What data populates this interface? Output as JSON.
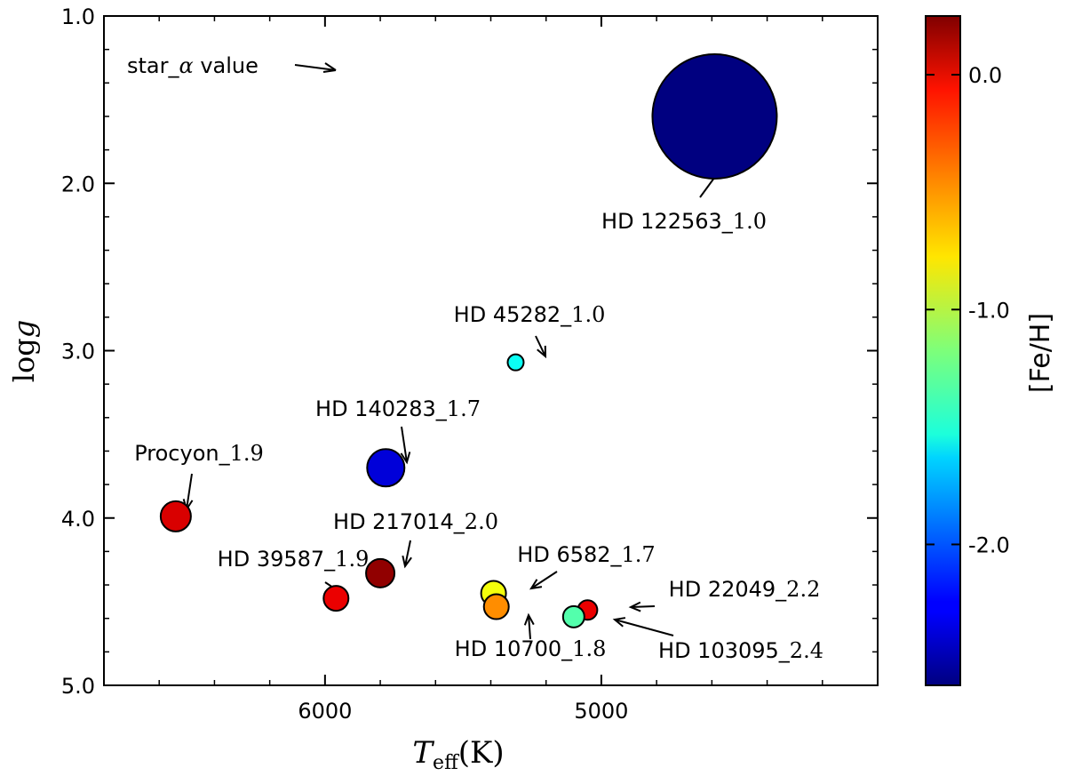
{
  "chart_data": {
    "type": "scatter",
    "title": "",
    "xlabel": {
      "symbol": "T",
      "subscript": "eff",
      "unit": "(K)"
    },
    "ylabel": {
      "text": "log",
      "var": "g"
    },
    "xlim": [
      6800,
      4000
    ],
    "ylim": [
      1.0,
      5.0
    ],
    "y_inverted": true,
    "x_inverted": true,
    "x_ticks": [
      6000,
      5000
    ],
    "x_tick_labels": [
      "6000",
      "5000"
    ],
    "y_ticks": [
      1.0,
      2.0,
      3.0,
      4.0,
      5.0
    ],
    "y_tick_labels": [
      "1.0",
      "2.0",
      "3.0",
      "4.0",
      "5.0"
    ],
    "grid": false,
    "size_encoding": "alpha value",
    "color_encoding": "[Fe/H]",
    "legend_note": {
      "prefix": "star_",
      "alpha": "α",
      "suffix": " value"
    },
    "colorbar": {
      "label": "[Fe/H]",
      "range": [
        -2.6,
        0.25
      ],
      "ticks": [
        0.0,
        -1.0,
        -2.0
      ],
      "tick_labels": [
        "0.0",
        "-1.0",
        "-2.0"
      ],
      "colormap": "jet"
    },
    "points": [
      {
        "name": "HD 122563",
        "alpha": "1.0",
        "teff": 4590,
        "logg": 1.6,
        "feh": -2.6
      },
      {
        "name": "HD 45282",
        "alpha": "1.0",
        "teff": 5310,
        "logg": 3.07,
        "feh": -1.5
      },
      {
        "name": "HD 140283",
        "alpha": "1.7",
        "teff": 5780,
        "logg": 3.7,
        "feh": -2.35
      },
      {
        "name": "Procyon",
        "alpha": "1.9",
        "teff": 6540,
        "logg": 3.99,
        "feh": 0.0
      },
      {
        "name": "HD 217014",
        "alpha": "2.0",
        "teff": 5800,
        "logg": 4.33,
        "feh": 0.2
      },
      {
        "name": "HD 39587",
        "alpha": "1.9",
        "teff": 5960,
        "logg": 4.48,
        "feh": -0.05
      },
      {
        "name": "HD 6582",
        "alpha": "1.7",
        "teff": 5390,
        "logg": 4.45,
        "feh": -0.85
      },
      {
        "name": "HD 10700",
        "alpha": "1.8",
        "teff": 5380,
        "logg": 4.53,
        "feh": -0.5
      },
      {
        "name": "HD 22049",
        "alpha": "2.2",
        "teff": 5050,
        "logg": 4.55,
        "feh": -0.05
      },
      {
        "name": "HD 103095",
        "alpha": "2.4",
        "teff": 5100,
        "logg": 4.59,
        "feh": -1.3
      }
    ]
  }
}
